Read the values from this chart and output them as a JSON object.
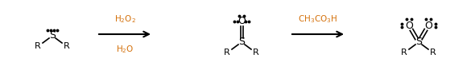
{
  "bg_color": "#ffffff",
  "arrow1_label_top": "H$_2$O$_2$",
  "arrow1_label_bot": "H$_2$O",
  "arrow2_label": "CH$_3$CO$_3$H",
  "arrow_color": "#d4700a",
  "bond_color": "#000000",
  "dot_color": "#000000",
  "figsize": [
    5.9,
    0.83
  ],
  "dpi": 100,
  "xlim": [
    0,
    590
  ],
  "ylim": [
    0,
    83
  ]
}
